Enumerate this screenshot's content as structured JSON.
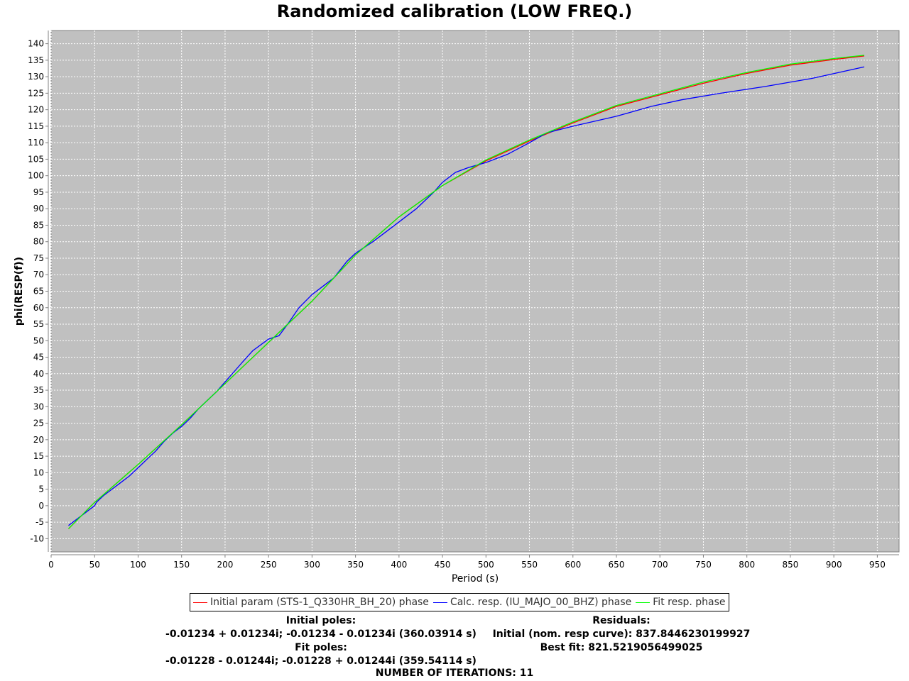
{
  "chart_data": {
    "type": "line",
    "title": "Randomized calibration (LOW FREQ.)",
    "xlabel": "Period (s)",
    "ylabel": "phi(RESP(f))",
    "xlim": [
      0,
      975
    ],
    "ylim": [
      -14,
      144
    ],
    "xticks": [
      0,
      50,
      100,
      150,
      200,
      250,
      300,
      350,
      400,
      450,
      500,
      550,
      600,
      650,
      700,
      750,
      800,
      850,
      900,
      950
    ],
    "yticks": [
      -10,
      -5,
      0,
      5,
      10,
      15,
      20,
      25,
      30,
      35,
      40,
      45,
      50,
      55,
      60,
      65,
      70,
      75,
      80,
      85,
      90,
      95,
      100,
      105,
      110,
      115,
      120,
      125,
      130,
      135,
      140
    ],
    "grid": true,
    "legend_position": "bottom",
    "background_color": "#c0c0c0",
    "series": [
      {
        "name": "Initial param (STS-1_Q330HR_BH_20) phase",
        "color": "#ff0000",
        "x": [
          20,
          50,
          100,
          150,
          200,
          250,
          300,
          350,
          400,
          450,
          500,
          550,
          600,
          650,
          700,
          750,
          800,
          850,
          900,
          935
        ],
        "y": [
          -7,
          1,
          12.5,
          24.5,
          37,
          49.5,
          62,
          76,
          87.5,
          97,
          104.5,
          110.5,
          116,
          121,
          124.5,
          128,
          131,
          133.5,
          135.2,
          136.3
        ]
      },
      {
        "name": "Calc. resp. (IU_MAJO_00_BHZ) phase",
        "color": "#0000ff",
        "x": [
          20,
          30,
          40,
          50,
          52,
          60,
          70,
          80,
          90,
          100,
          110,
          120,
          130,
          140,
          150,
          160,
          170,
          180,
          190,
          200,
          210,
          220,
          232,
          250,
          262,
          272,
          285,
          300,
          315,
          325,
          340,
          350,
          370,
          385,
          405,
          420,
          440,
          450,
          465,
          480,
          500,
          525,
          550,
          570,
          600,
          625,
          650,
          690,
          725,
          770,
          820,
          875,
          935
        ],
        "y": [
          -6,
          -4,
          -2,
          0,
          1,
          3,
          5,
          7,
          9,
          11.5,
          14,
          16.5,
          19.5,
          22,
          24,
          26.5,
          29.5,
          32,
          34.5,
          37.5,
          40.5,
          43.5,
          47,
          50.5,
          51.5,
          55,
          60,
          64,
          67,
          69,
          74,
          76.5,
          80,
          83,
          87,
          90,
          95,
          98,
          101,
          102.5,
          104,
          106.5,
          110,
          113,
          115,
          116.5,
          118,
          121,
          123,
          125,
          127,
          129.5,
          133
        ]
      },
      {
        "name": "Fit resp. phase",
        "color": "#00ff00",
        "x": [
          20,
          50,
          100,
          150,
          200,
          250,
          300,
          350,
          400,
          450,
          500,
          550,
          600,
          650,
          700,
          750,
          800,
          850,
          900,
          935
        ],
        "y": [
          -7,
          1,
          12.5,
          24.5,
          37,
          49.5,
          62,
          76,
          87.5,
          97,
          104.8,
          110.8,
          116.3,
          121.3,
          124.8,
          128.4,
          131.3,
          133.8,
          135.5,
          136.5
        ]
      }
    ]
  },
  "info": {
    "initial_poles_label": "Initial poles:",
    "initial_poles_value": "-0.01234 + 0.01234i;  -0.01234 - 0.01234i (360.03914 s)",
    "fit_poles_label": "Fit poles:",
    "fit_poles_value": "-0.01228 - 0.01244i;  -0.01228 + 0.01244i (359.54114 s)",
    "residuals_label": "Residuals:",
    "residuals_initial": "Initial (nom. resp curve): 837.8446230199927",
    "residuals_best": "Best fit: 821.5219056499025",
    "iterations": "NUMBER OF ITERATIONS: 11"
  }
}
